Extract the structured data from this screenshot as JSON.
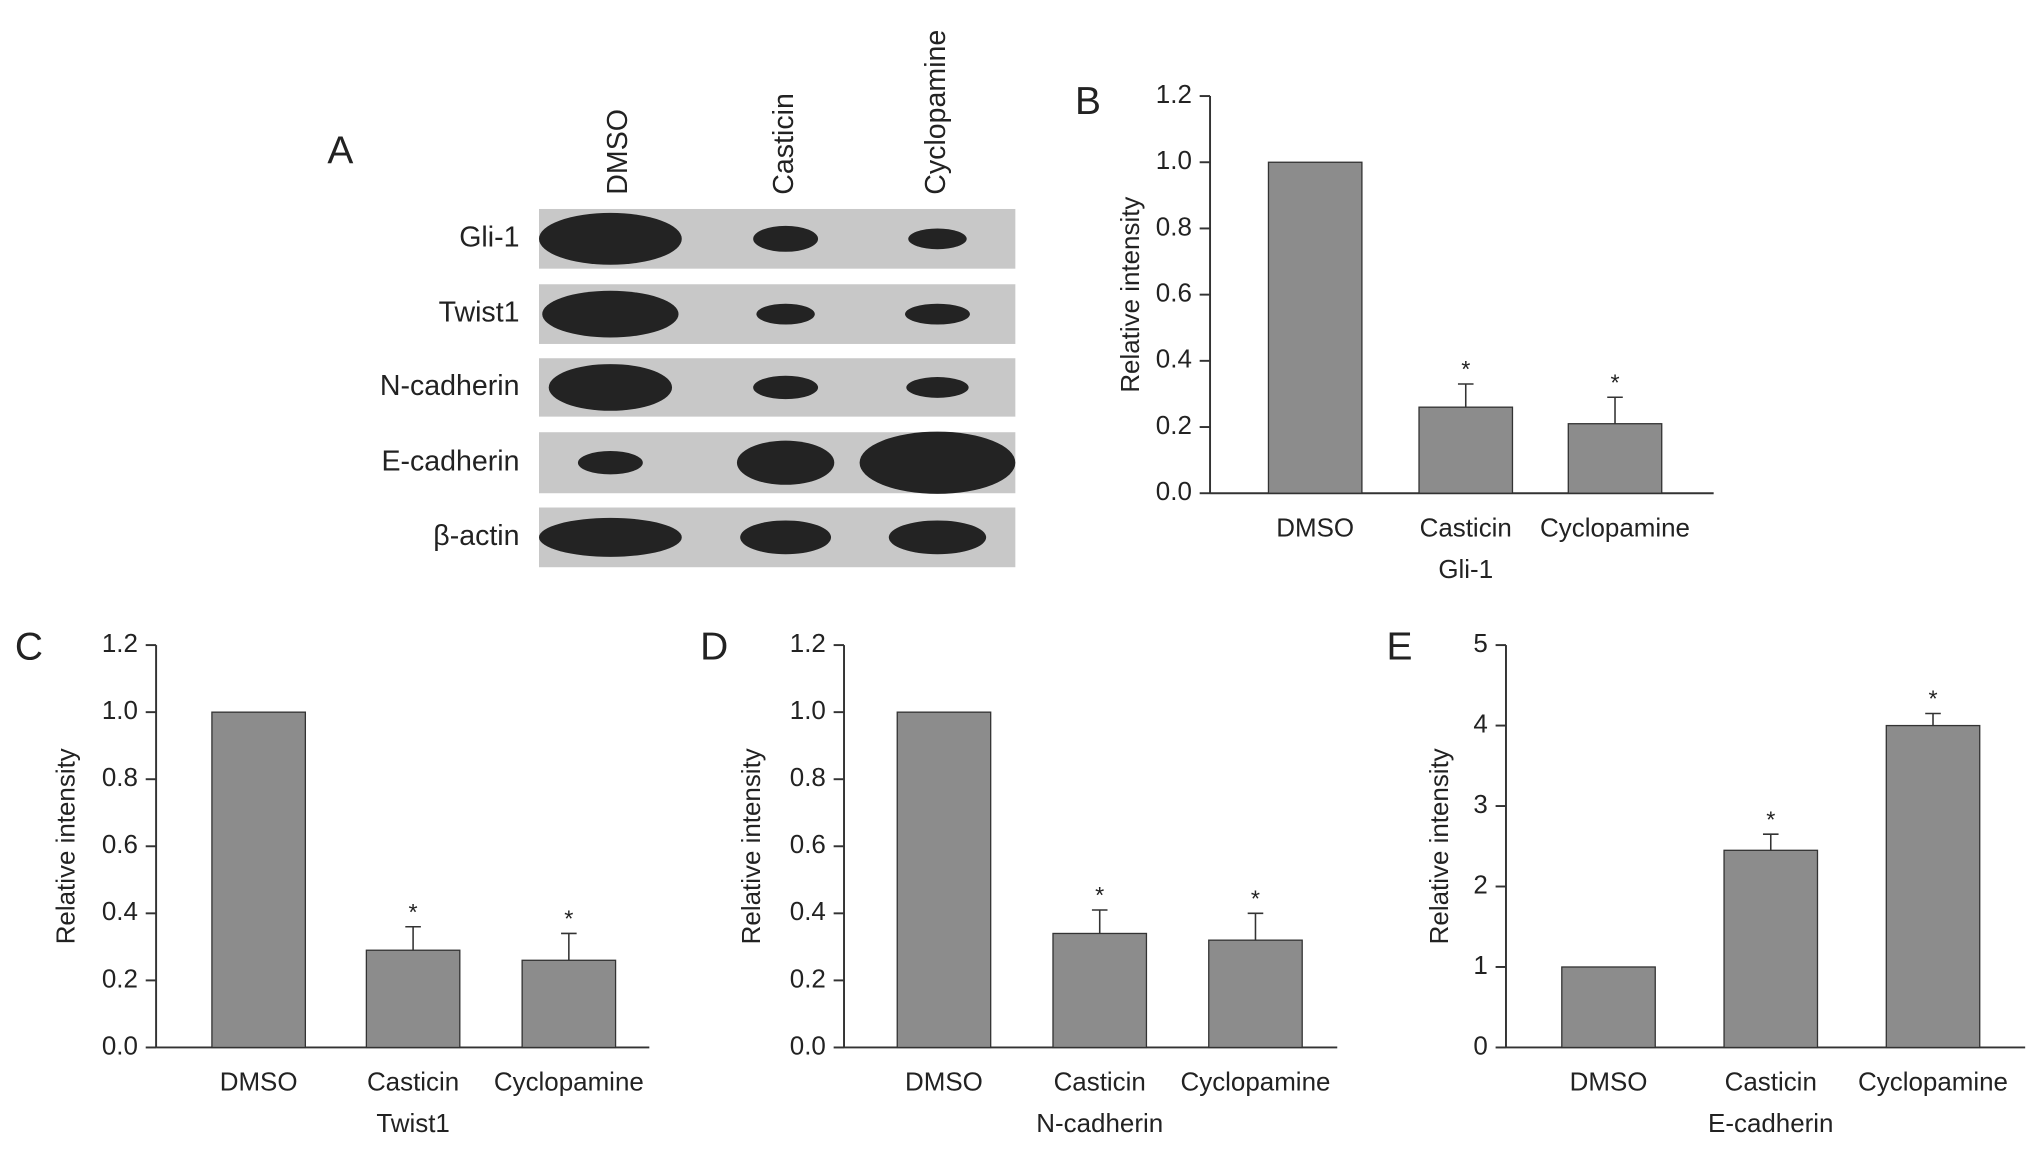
{
  "blot": {
    "label": "A",
    "lanes": [
      "DMSO",
      "Casticin",
      "Cyclopamine"
    ],
    "rows": [
      "Gli-1",
      "Twist1",
      "N-cadherin",
      "E-cadherin",
      "β-actin"
    ]
  },
  "chart_data": [
    {
      "type": "bar",
      "panel": "B",
      "ylabel": "Relative intensity",
      "xlabel": "Gli-1",
      "categories": [
        "DMSO",
        "Casticin",
        "Cyclopamine"
      ],
      "values": [
        1.0,
        0.26,
        0.21
      ],
      "errors": [
        0,
        0.07,
        0.08
      ],
      "markers": [
        null,
        "*",
        "*"
      ],
      "color": "#8c8c8c",
      "ylim": [
        0,
        1.2
      ],
      "yticks": [
        {
          "value": 0,
          "label": "0.0"
        },
        {
          "value": 0.2,
          "label": "0.2"
        },
        {
          "value": 0.4,
          "label": "0.4"
        },
        {
          "value": 0.6,
          "label": "0.6"
        },
        {
          "value": 0.8,
          "label": "0.8"
        },
        {
          "value": 1.0,
          "label": "1.0"
        },
        {
          "value": 1.2,
          "label": "1.2"
        }
      ]
    },
    {
      "type": "bar",
      "panel": "C",
      "ylabel": "Relative intensity",
      "xlabel": "Twist1",
      "categories": [
        "DMSO",
        "Casticin",
        "Cyclopamine"
      ],
      "values": [
        1.0,
        0.29,
        0.26
      ],
      "errors": [
        0,
        0.07,
        0.08
      ],
      "markers": [
        null,
        "*",
        "*"
      ],
      "color": "#8c8c8c",
      "ylim": [
        0,
        1.2
      ],
      "yticks": [
        {
          "value": 0,
          "label": "0.0"
        },
        {
          "value": 0.2,
          "label": "0.2"
        },
        {
          "value": 0.4,
          "label": "0.4"
        },
        {
          "value": 0.6,
          "label": "0.6"
        },
        {
          "value": 0.8,
          "label": "0.8"
        },
        {
          "value": 1.0,
          "label": "1.0"
        },
        {
          "value": 1.2,
          "label": "1.2"
        }
      ]
    },
    {
      "type": "bar",
      "panel": "D",
      "ylabel": "Relative intensity",
      "xlabel": "N-cadherin",
      "categories": [
        "DMSO",
        "Casticin",
        "Cyclopamine"
      ],
      "values": [
        1.0,
        0.34,
        0.32
      ],
      "errors": [
        0,
        0.07,
        0.08
      ],
      "markers": [
        null,
        "*",
        "*"
      ],
      "color": "#8c8c8c",
      "ylim": [
        0,
        1.2
      ],
      "yticks": [
        {
          "value": 0,
          "label": "0.0"
        },
        {
          "value": 0.2,
          "label": "0.2"
        },
        {
          "value": 0.4,
          "label": "0.4"
        },
        {
          "value": 0.6,
          "label": "0.6"
        },
        {
          "value": 0.8,
          "label": "0.8"
        },
        {
          "value": 1.0,
          "label": "1.0"
        },
        {
          "value": 1.2,
          "label": "1.2"
        }
      ]
    },
    {
      "type": "bar",
      "panel": "E",
      "ylabel": "Relative intensity",
      "xlabel": "E-cadherin",
      "categories": [
        "DMSO",
        "Casticin",
        "Cyclopamine"
      ],
      "values": [
        1.0,
        2.45,
        4.0
      ],
      "errors": [
        0,
        0.2,
        0.15
      ],
      "markers": [
        null,
        "*",
        "*"
      ],
      "color": "#8c8c8c",
      "ylim": [
        0,
        5
      ],
      "yticks": [
        0,
        1,
        2,
        3,
        4,
        5
      ]
    }
  ]
}
